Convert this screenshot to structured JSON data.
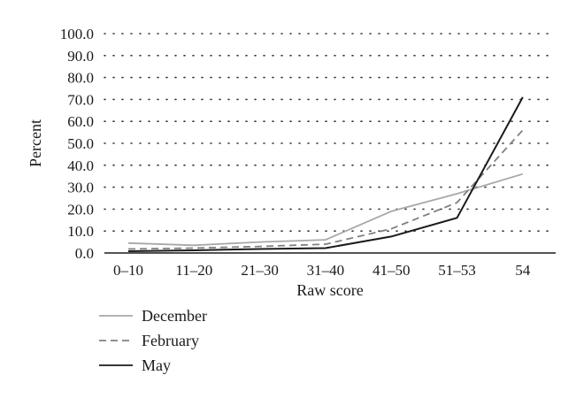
{
  "chart_data": {
    "type": "line",
    "categories": [
      "0–10",
      "11–20",
      "21–30",
      "31–40",
      "41–50",
      "51–53",
      "54"
    ],
    "xlabel": "Raw score",
    "ylabel": "Percent",
    "ylim": [
      0,
      100
    ],
    "yticks": [
      "0.0",
      "10.0",
      "20.0",
      "30.0",
      "40.0",
      "50.0",
      "60.0",
      "70.0",
      "80.0",
      "90.0",
      "100.0"
    ],
    "grid": "horizontal dotted",
    "legend_position": "bottom-left",
    "series": [
      {
        "name": "December",
        "values": [
          4.5,
          3.5,
          5,
          6,
          19,
          27,
          36
        ],
        "color": "#a8a8a8",
        "dash": "solid"
      },
      {
        "name": "February",
        "values": [
          1.8,
          2.2,
          3,
          4,
          11,
          23,
          56
        ],
        "color": "#808080",
        "dash": "dashed"
      },
      {
        "name": "May",
        "values": [
          0.8,
          1.2,
          1.8,
          2.2,
          7.5,
          16,
          71
        ],
        "color": "#1a1a1a",
        "dash": "solid"
      }
    ]
  }
}
